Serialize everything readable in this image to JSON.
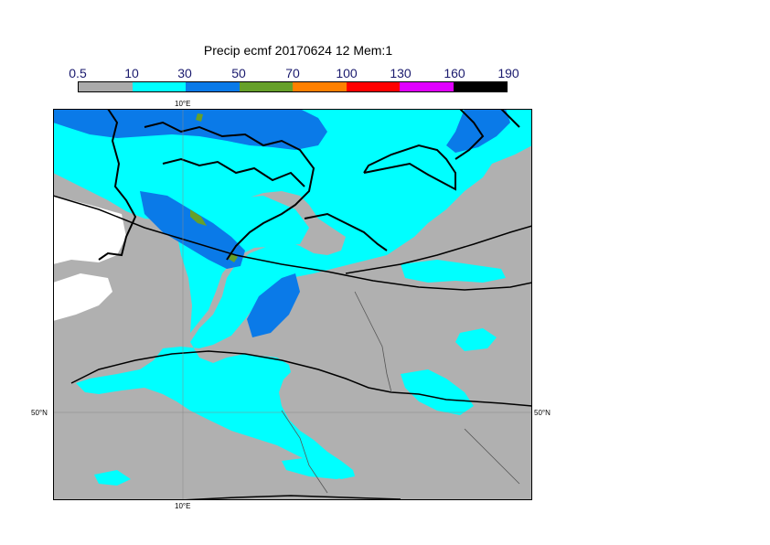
{
  "title": "Precip ecmf 20170624 12 Mem:1",
  "legend": {
    "labels": [
      "0.5",
      "10",
      "30",
      "50",
      "70",
      "100",
      "130",
      "160",
      "190"
    ],
    "colors": [
      "#aaaaaa",
      "#00ffff",
      "#0a7ae8",
      "#66a02a",
      "#ff8000",
      "#ff0000",
      "#e000ff",
      "#000000"
    ]
  },
  "map": {
    "land_color": "#b0b0b0",
    "sea_color": "#ffffff",
    "lon_label_top": "10°E",
    "lon_label_bottom": "10°E",
    "lat_label_left": "50°N",
    "lat_label_right": "50°N"
  }
}
